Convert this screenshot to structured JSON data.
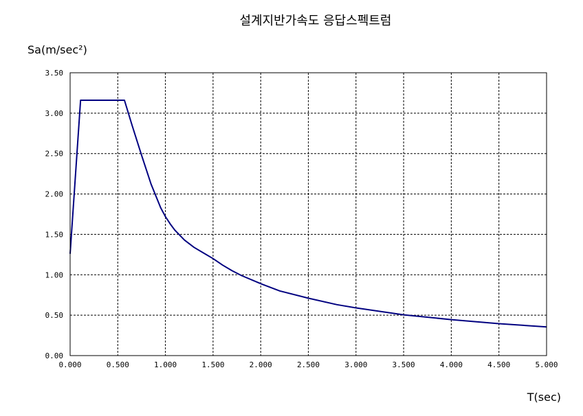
{
  "chart_data": {
    "type": "line",
    "title": "설계지반가속도 응답스펙트럼",
    "ylabel": "Sa(m/sec²)",
    "xlabel": "T(sec)",
    "xlim": [
      0,
      5
    ],
    "ylim": [
      0,
      3.5
    ],
    "x_ticks": [
      "0.000",
      "0.500",
      "1.000",
      "1.500",
      "2.000",
      "2.500",
      "3.000",
      "3.500",
      "4.000",
      "4.500",
      "5.000"
    ],
    "y_ticks": [
      "0.00",
      "0.50",
      "1.00",
      "1.50",
      "2.00",
      "2.50",
      "3.00",
      "3.50"
    ],
    "grid": true,
    "legend": "none",
    "series": [
      {
        "color": "#000080",
        "x": [
          0.0,
          0.11,
          0.2,
          0.3,
          0.4,
          0.5,
          0.57,
          0.65,
          0.75,
          0.85,
          0.95,
          1.0,
          1.05,
          1.1,
          1.2,
          1.3,
          1.4,
          1.5,
          1.6,
          1.7,
          1.8,
          2.0,
          2.2,
          2.5,
          2.8,
          3.0,
          3.5,
          4.0,
          4.5,
          5.0
        ],
        "y": [
          1.26,
          3.16,
          3.16,
          3.16,
          3.16,
          3.16,
          3.16,
          2.85,
          2.48,
          2.12,
          1.83,
          1.72,
          1.63,
          1.55,
          1.43,
          1.34,
          1.27,
          1.2,
          1.12,
          1.05,
          0.99,
          0.89,
          0.8,
          0.71,
          0.63,
          0.59,
          0.505,
          0.445,
          0.395,
          0.355
        ]
      }
    ]
  }
}
